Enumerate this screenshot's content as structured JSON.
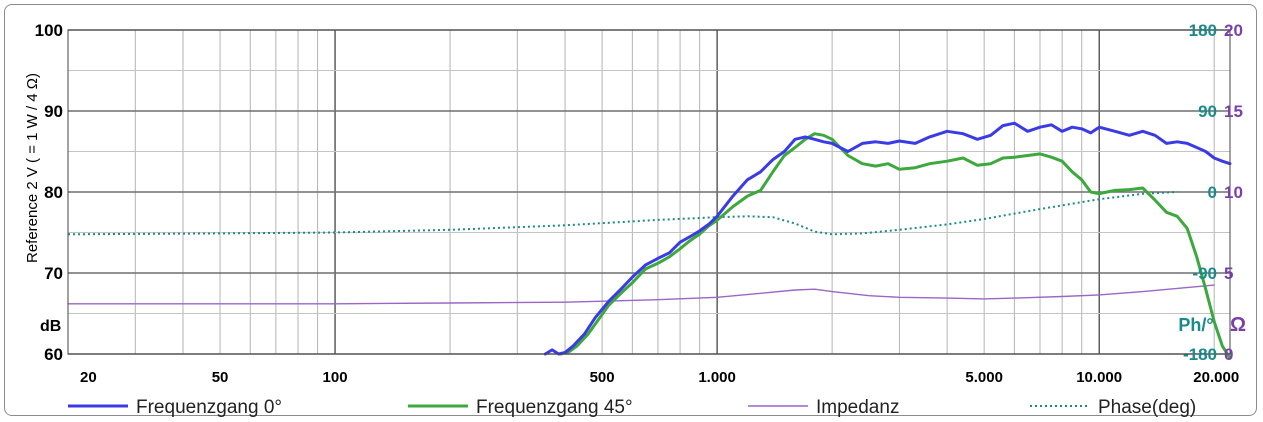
{
  "chart_data": {
    "type": "line",
    "title": "",
    "xlabel": "",
    "x_scale": "log",
    "xlim": [
      20,
      22000
    ],
    "x_ticks": [
      {
        "value": 20,
        "label": "20"
      },
      {
        "value": 50,
        "label": "50"
      },
      {
        "value": 100,
        "label": "100"
      },
      {
        "value": 500,
        "label": "500"
      },
      {
        "value": 1000,
        "label": "1.000"
      },
      {
        "value": 5000,
        "label": "5.000"
      },
      {
        "value": 10000,
        "label": "10.000"
      },
      {
        "value": 20000,
        "label": "20.000"
      }
    ],
    "ylabel": "Reference 2 V ( = 1 W / 4 Ω)",
    "y_unit": "dB",
    "ylim": [
      60,
      100
    ],
    "y_ticks": [
      "60",
      "70",
      "80",
      "90",
      "100"
    ],
    "y2_label": "Ph/°",
    "y2lim": [
      -180,
      180
    ],
    "y2_ticks": [
      "-180",
      "-90",
      "0",
      "90",
      "180"
    ],
    "y3_label": "Ω",
    "y3lim": [
      0,
      20
    ],
    "y3_ticks": [
      "0",
      "5",
      "10",
      "15",
      "20"
    ],
    "grid": true,
    "legend_position": "bottom",
    "series": [
      {
        "name": "Frequenzgang 0°",
        "axis": "dB",
        "color": "#3b3be6",
        "style": "solid",
        "x": [
          355,
          370,
          385,
          400,
          420,
          450,
          480,
          520,
          560,
          600,
          650,
          700,
          750,
          800,
          850,
          900,
          950,
          1000,
          1100,
          1200,
          1300,
          1400,
          1500,
          1600,
          1700,
          1800,
          1900,
          2000,
          2200,
          2400,
          2600,
          2800,
          3000,
          3300,
          3600,
          4000,
          4400,
          4800,
          5200,
          5600,
          6000,
          6500,
          7000,
          7500,
          8000,
          8500,
          9000,
          9500,
          10000,
          11000,
          12000,
          13000,
          14000,
          15000,
          16000,
          17000,
          18000,
          19000,
          20000,
          21000,
          22000
        ],
        "y": [
          60.0,
          60.5,
          60.0,
          60.2,
          61.0,
          62.5,
          64.5,
          66.5,
          68.0,
          69.5,
          71.0,
          71.8,
          72.5,
          73.8,
          74.5,
          75.2,
          76.0,
          77.0,
          79.5,
          81.5,
          82.5,
          84.0,
          85.0,
          86.5,
          86.8,
          86.5,
          86.2,
          86.0,
          85.0,
          86.0,
          86.2,
          86.0,
          86.3,
          86.0,
          86.8,
          87.5,
          87.2,
          86.5,
          87.0,
          88.2,
          88.5,
          87.5,
          88.0,
          88.3,
          87.5,
          88.0,
          87.8,
          87.3,
          88.0,
          87.5,
          87.0,
          87.5,
          87.0,
          86.0,
          86.2,
          86.0,
          85.5,
          85.0,
          84.2,
          83.8,
          83.5
        ]
      },
      {
        "name": "Frequenzgang 45°",
        "axis": "dB",
        "color": "#3da83d",
        "style": "solid",
        "x": [
          390,
          410,
          430,
          460,
          490,
          520,
          560,
          600,
          650,
          700,
          750,
          800,
          850,
          900,
          950,
          1000,
          1100,
          1200,
          1300,
          1400,
          1500,
          1600,
          1700,
          1800,
          1900,
          2000,
          2200,
          2400,
          2600,
          2800,
          3000,
          3300,
          3600,
          4000,
          4400,
          4800,
          5200,
          5600,
          6000,
          6500,
          7000,
          7500,
          8000,
          8500,
          9000,
          9500,
          10000,
          11000,
          12000,
          13000,
          14000,
          15000,
          16000,
          17000,
          18000,
          19000,
          20000,
          21000,
          22000
        ],
        "y": [
          60.0,
          60.3,
          61.0,
          62.5,
          64.3,
          66.0,
          67.5,
          68.8,
          70.5,
          71.2,
          72.0,
          73.0,
          74.0,
          74.8,
          75.8,
          76.5,
          78.2,
          79.5,
          80.2,
          82.5,
          84.5,
          85.5,
          86.5,
          87.2,
          87.0,
          86.5,
          84.5,
          83.5,
          83.2,
          83.5,
          82.8,
          83.0,
          83.5,
          83.8,
          84.2,
          83.3,
          83.5,
          84.2,
          84.3,
          84.5,
          84.7,
          84.3,
          83.8,
          82.5,
          81.5,
          80.0,
          79.8,
          80.2,
          80.3,
          80.5,
          79.0,
          77.5,
          77.0,
          75.5,
          72.0,
          68.0,
          64.0,
          61.0,
          59.5
        ]
      },
      {
        "name": "Impedanz",
        "axis": "Ω",
        "color": "#9b66c7",
        "style": "solid",
        "x": [
          20,
          50,
          100,
          200,
          400,
          700,
          1000,
          1300,
          1600,
          1800,
          2000,
          2500,
          3000,
          4000,
          5000,
          6000,
          8000,
          10000,
          13000,
          16000,
          20000
        ],
        "y": [
          3.1,
          3.1,
          3.1,
          3.15,
          3.2,
          3.35,
          3.5,
          3.75,
          3.95,
          4.0,
          3.85,
          3.6,
          3.5,
          3.45,
          3.4,
          3.45,
          3.55,
          3.65,
          3.85,
          4.05,
          4.25
        ]
      },
      {
        "name": "Phase(deg)",
        "axis": "Ph/°",
        "color": "#1a8a8a",
        "style": "dotted",
        "x": [
          20,
          50,
          100,
          200,
          400,
          700,
          1000,
          1200,
          1400,
          1600,
          1800,
          2000,
          2400,
          3000,
          4000,
          5000,
          7000,
          10000,
          13000,
          16000
        ],
        "y": [
          -47,
          -46,
          -45,
          -42,
          -37,
          -31,
          -28,
          -27,
          -28,
          -35,
          -44,
          -47,
          -46,
          -42,
          -36,
          -30,
          -19,
          -8,
          -2,
          0
        ]
      }
    ]
  }
}
